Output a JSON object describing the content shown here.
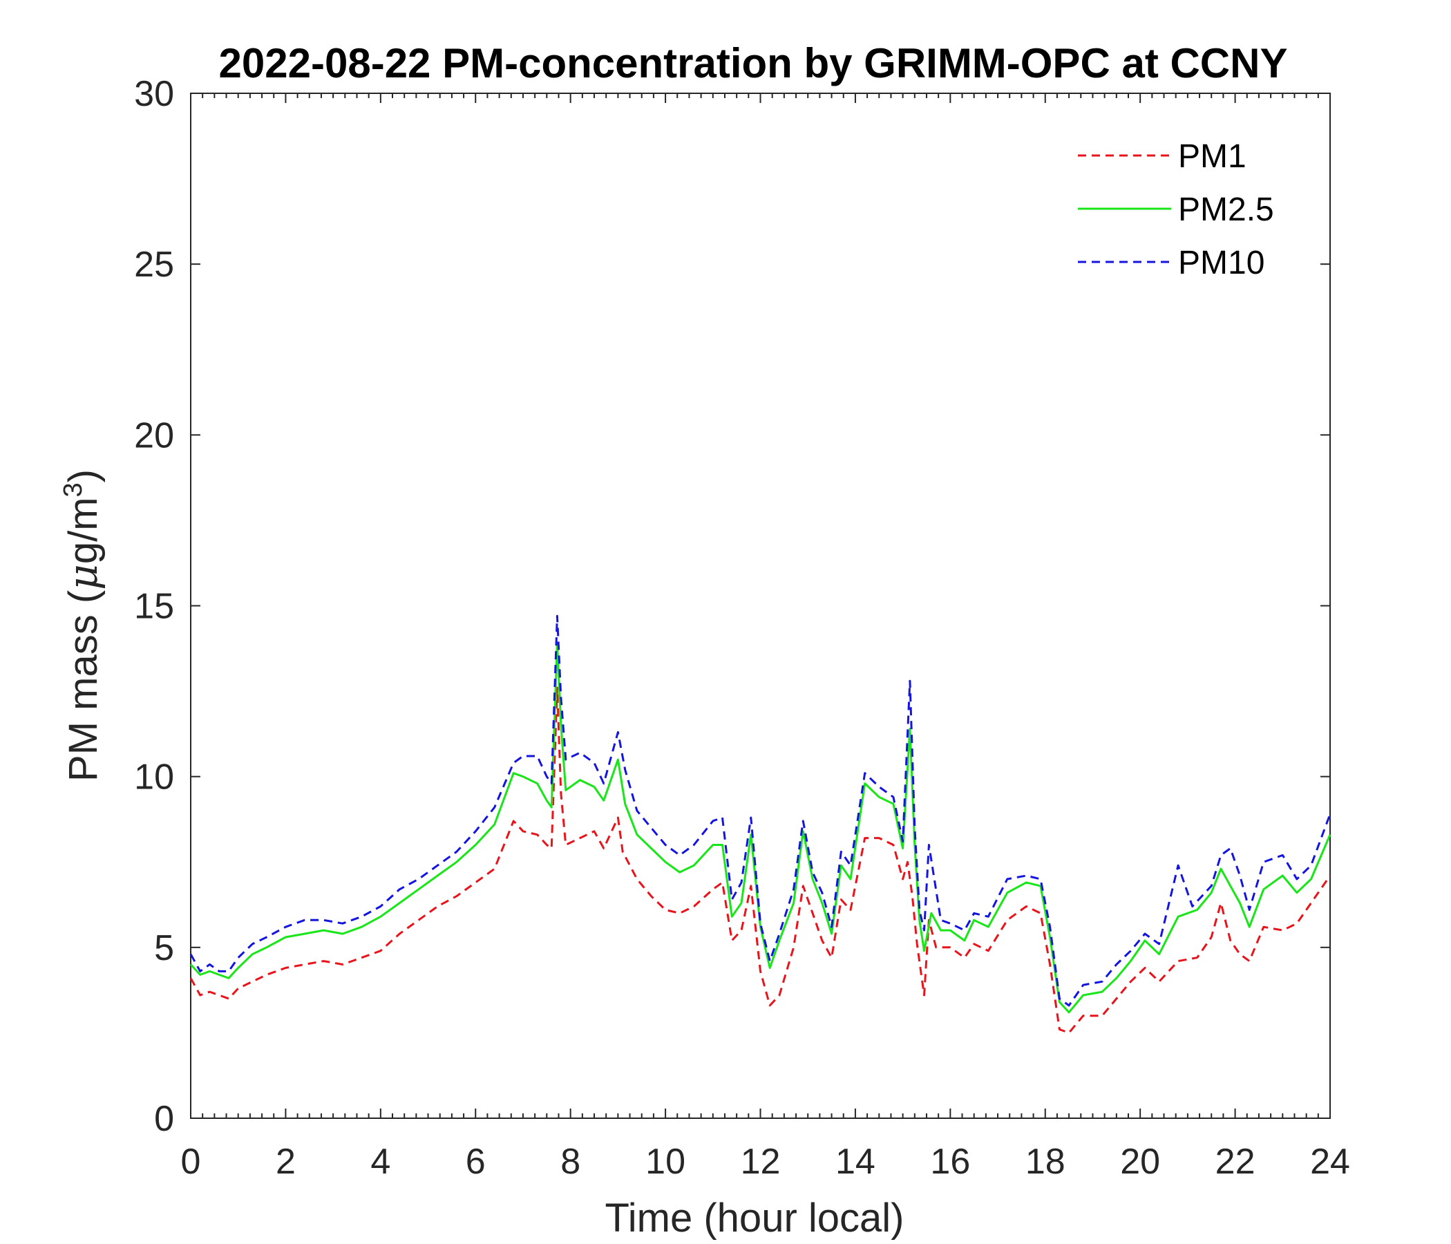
{
  "chart_data": {
    "type": "line",
    "title": "2022-08-22 PM-concentration by GRIMM-OPC at CCNY",
    "xlabel": "Time (hour local)",
    "ylabel_main": "PM mass (",
    "ylabel_mu": "μ",
    "ylabel_unit": "g/m",
    "ylabel_sup": "3",
    "ylabel_close": ")",
    "xlim": [
      0,
      24
    ],
    "ylim": [
      0,
      30
    ],
    "xticks": [
      "0",
      "2",
      "4",
      "6",
      "8",
      "10",
      "12",
      "14",
      "16",
      "18",
      "20",
      "22",
      "24"
    ],
    "yticks": [
      "0",
      "5",
      "10",
      "15",
      "20",
      "25",
      "30"
    ],
    "grid": false,
    "legend_position": "top-right",
    "series": [
      {
        "name": "PM1",
        "color": "#e8141b",
        "style": "dashed",
        "points": [
          [
            0,
            4.1
          ],
          [
            0.2,
            3.6
          ],
          [
            0.4,
            3.7
          ],
          [
            0.6,
            3.6
          ],
          [
            0.8,
            3.5
          ],
          [
            1.0,
            3.8
          ],
          [
            1.3,
            4.0
          ],
          [
            1.6,
            4.2
          ],
          [
            2.0,
            4.4
          ],
          [
            2.4,
            4.5
          ],
          [
            2.8,
            4.6
          ],
          [
            3.2,
            4.5
          ],
          [
            3.6,
            4.7
          ],
          [
            4.0,
            4.9
          ],
          [
            4.4,
            5.4
          ],
          [
            4.8,
            5.8
          ],
          [
            5.2,
            6.2
          ],
          [
            5.6,
            6.5
          ],
          [
            6.0,
            6.9
          ],
          [
            6.4,
            7.3
          ],
          [
            6.8,
            8.7
          ],
          [
            7.0,
            8.4
          ],
          [
            7.3,
            8.3
          ],
          [
            7.5,
            8.0
          ],
          [
            7.6,
            7.9
          ],
          [
            7.72,
            12.6
          ],
          [
            7.8,
            9.5
          ],
          [
            7.9,
            8.0
          ],
          [
            8.2,
            8.2
          ],
          [
            8.5,
            8.4
          ],
          [
            8.7,
            7.9
          ],
          [
            9.0,
            8.8
          ],
          [
            9.1,
            7.8
          ],
          [
            9.4,
            7.0
          ],
          [
            9.7,
            6.5
          ],
          [
            10.0,
            6.1
          ],
          [
            10.3,
            6.0
          ],
          [
            10.6,
            6.2
          ],
          [
            11.0,
            6.7
          ],
          [
            11.2,
            6.9
          ],
          [
            11.4,
            5.2
          ],
          [
            11.6,
            5.5
          ],
          [
            11.8,
            6.8
          ],
          [
            12.0,
            4.3
          ],
          [
            12.2,
            3.3
          ],
          [
            12.4,
            3.6
          ],
          [
            12.7,
            5.0
          ],
          [
            12.9,
            6.8
          ],
          [
            13.1,
            6.0
          ],
          [
            13.3,
            5.2
          ],
          [
            13.5,
            4.7
          ],
          [
            13.7,
            6.4
          ],
          [
            13.9,
            6.1
          ],
          [
            14.2,
            8.2
          ],
          [
            14.5,
            8.2
          ],
          [
            14.8,
            8.0
          ],
          [
            15.0,
            7.0
          ],
          [
            15.1,
            7.5
          ],
          [
            15.2,
            6.5
          ],
          [
            15.3,
            5.1
          ],
          [
            15.45,
            3.6
          ],
          [
            15.55,
            5.8
          ],
          [
            15.7,
            5.0
          ],
          [
            16.0,
            5.0
          ],
          [
            16.3,
            4.7
          ],
          [
            16.5,
            5.1
          ],
          [
            16.8,
            4.9
          ],
          [
            17.2,
            5.8
          ],
          [
            17.6,
            6.2
          ],
          [
            17.9,
            6.0
          ],
          [
            18.1,
            4.5
          ],
          [
            18.3,
            2.6
          ],
          [
            18.5,
            2.5
          ],
          [
            18.8,
            3.0
          ],
          [
            19.2,
            3.0
          ],
          [
            19.5,
            3.5
          ],
          [
            19.8,
            4.0
          ],
          [
            20.1,
            4.4
          ],
          [
            20.4,
            4.0
          ],
          [
            20.8,
            4.6
          ],
          [
            21.2,
            4.7
          ],
          [
            21.5,
            5.3
          ],
          [
            21.7,
            6.3
          ],
          [
            21.9,
            5.2
          ],
          [
            22.1,
            4.8
          ],
          [
            22.3,
            4.6
          ],
          [
            22.6,
            5.6
          ],
          [
            23.0,
            5.5
          ],
          [
            23.3,
            5.7
          ],
          [
            23.6,
            6.3
          ],
          [
            24.0,
            7.1
          ]
        ]
      },
      {
        "name": "PM2.5",
        "color": "#19e619",
        "style": "solid",
        "points": [
          [
            0,
            4.5
          ],
          [
            0.2,
            4.2
          ],
          [
            0.4,
            4.3
          ],
          [
            0.6,
            4.2
          ],
          [
            0.8,
            4.1
          ],
          [
            1.0,
            4.4
          ],
          [
            1.3,
            4.8
          ],
          [
            1.6,
            5.0
          ],
          [
            2.0,
            5.3
          ],
          [
            2.4,
            5.4
          ],
          [
            2.8,
            5.5
          ],
          [
            3.2,
            5.4
          ],
          [
            3.6,
            5.6
          ],
          [
            4.0,
            5.9
          ],
          [
            4.4,
            6.3
          ],
          [
            4.8,
            6.7
          ],
          [
            5.2,
            7.1
          ],
          [
            5.6,
            7.5
          ],
          [
            6.0,
            8.0
          ],
          [
            6.4,
            8.6
          ],
          [
            6.8,
            10.1
          ],
          [
            7.0,
            10.0
          ],
          [
            7.3,
            9.8
          ],
          [
            7.5,
            9.3
          ],
          [
            7.6,
            9.1
          ],
          [
            7.72,
            13.9
          ],
          [
            7.8,
            11.5
          ],
          [
            7.9,
            9.6
          ],
          [
            8.2,
            9.9
          ],
          [
            8.5,
            9.7
          ],
          [
            8.7,
            9.3
          ],
          [
            9.0,
            10.5
          ],
          [
            9.15,
            9.2
          ],
          [
            9.4,
            8.3
          ],
          [
            9.7,
            7.9
          ],
          [
            10.0,
            7.5
          ],
          [
            10.3,
            7.2
          ],
          [
            10.6,
            7.4
          ],
          [
            11.0,
            8.0
          ],
          [
            11.2,
            8.0
          ],
          [
            11.4,
            5.9
          ],
          [
            11.6,
            6.3
          ],
          [
            11.8,
            8.3
          ],
          [
            12.0,
            5.6
          ],
          [
            12.2,
            4.4
          ],
          [
            12.4,
            5.2
          ],
          [
            12.7,
            6.3
          ],
          [
            12.9,
            8.4
          ],
          [
            13.1,
            7.0
          ],
          [
            13.3,
            6.3
          ],
          [
            13.5,
            5.4
          ],
          [
            13.7,
            7.4
          ],
          [
            13.9,
            7.0
          ],
          [
            14.2,
            9.8
          ],
          [
            14.5,
            9.4
          ],
          [
            14.8,
            9.2
          ],
          [
            15.0,
            7.9
          ],
          [
            15.15,
            11.4
          ],
          [
            15.25,
            8.0
          ],
          [
            15.35,
            5.8
          ],
          [
            15.45,
            4.9
          ],
          [
            15.6,
            6.0
          ],
          [
            15.8,
            5.5
          ],
          [
            16.0,
            5.5
          ],
          [
            16.3,
            5.2
          ],
          [
            16.5,
            5.8
          ],
          [
            16.8,
            5.6
          ],
          [
            17.2,
            6.6
          ],
          [
            17.6,
            6.9
          ],
          [
            17.9,
            6.8
          ],
          [
            18.1,
            5.3
          ],
          [
            18.3,
            3.4
          ],
          [
            18.5,
            3.1
          ],
          [
            18.8,
            3.6
          ],
          [
            19.2,
            3.7
          ],
          [
            19.5,
            4.1
          ],
          [
            19.8,
            4.6
          ],
          [
            20.1,
            5.2
          ],
          [
            20.4,
            4.8
          ],
          [
            20.8,
            5.9
          ],
          [
            21.2,
            6.1
          ],
          [
            21.5,
            6.6
          ],
          [
            21.7,
            7.3
          ],
          [
            21.9,
            6.8
          ],
          [
            22.1,
            6.3
          ],
          [
            22.3,
            5.6
          ],
          [
            22.6,
            6.7
          ],
          [
            23.0,
            7.1
          ],
          [
            23.3,
            6.6
          ],
          [
            23.6,
            7.0
          ],
          [
            24.0,
            8.3
          ]
        ]
      },
      {
        "name": "PM10",
        "color": "#1414e0",
        "style": "dashed",
        "points": [
          [
            0,
            4.8
          ],
          [
            0.2,
            4.3
          ],
          [
            0.4,
            4.5
          ],
          [
            0.6,
            4.3
          ],
          [
            0.8,
            4.3
          ],
          [
            1.0,
            4.7
          ],
          [
            1.3,
            5.1
          ],
          [
            1.6,
            5.3
          ],
          [
            2.0,
            5.6
          ],
          [
            2.4,
            5.8
          ],
          [
            2.8,
            5.8
          ],
          [
            3.2,
            5.7
          ],
          [
            3.6,
            5.9
          ],
          [
            4.0,
            6.2
          ],
          [
            4.4,
            6.7
          ],
          [
            4.8,
            7.0
          ],
          [
            5.2,
            7.4
          ],
          [
            5.6,
            7.8
          ],
          [
            6.0,
            8.4
          ],
          [
            6.4,
            9.1
          ],
          [
            6.8,
            10.4
          ],
          [
            7.0,
            10.6
          ],
          [
            7.3,
            10.6
          ],
          [
            7.5,
            10.0
          ],
          [
            7.6,
            9.8
          ],
          [
            7.72,
            14.7
          ],
          [
            7.8,
            12.3
          ],
          [
            7.9,
            10.5
          ],
          [
            8.2,
            10.7
          ],
          [
            8.5,
            10.4
          ],
          [
            8.7,
            9.8
          ],
          [
            9.0,
            11.3
          ],
          [
            9.15,
            10.2
          ],
          [
            9.4,
            9.0
          ],
          [
            9.7,
            8.5
          ],
          [
            10.0,
            8.0
          ],
          [
            10.3,
            7.7
          ],
          [
            10.6,
            8.0
          ],
          [
            11.0,
            8.7
          ],
          [
            11.2,
            8.8
          ],
          [
            11.4,
            6.4
          ],
          [
            11.6,
            6.9
          ],
          [
            11.8,
            8.8
          ],
          [
            12.0,
            5.7
          ],
          [
            12.2,
            4.6
          ],
          [
            12.4,
            5.4
          ],
          [
            12.7,
            6.7
          ],
          [
            12.9,
            8.7
          ],
          [
            13.1,
            7.2
          ],
          [
            13.3,
            6.6
          ],
          [
            13.5,
            5.6
          ],
          [
            13.7,
            7.8
          ],
          [
            13.9,
            7.4
          ],
          [
            14.2,
            10.1
          ],
          [
            14.5,
            9.7
          ],
          [
            14.8,
            9.4
          ],
          [
            15.0,
            8.1
          ],
          [
            15.15,
            12.8
          ],
          [
            15.25,
            8.5
          ],
          [
            15.35,
            6.1
          ],
          [
            15.45,
            5.5
          ],
          [
            15.55,
            8.0
          ],
          [
            15.8,
            5.8
          ],
          [
            16.0,
            5.7
          ],
          [
            16.3,
            5.5
          ],
          [
            16.5,
            6.0
          ],
          [
            16.8,
            5.9
          ],
          [
            17.2,
            7.0
          ],
          [
            17.6,
            7.1
          ],
          [
            17.9,
            7.0
          ],
          [
            18.1,
            5.6
          ],
          [
            18.3,
            3.5
          ],
          [
            18.5,
            3.3
          ],
          [
            18.8,
            3.9
          ],
          [
            19.2,
            4.0
          ],
          [
            19.5,
            4.5
          ],
          [
            19.8,
            4.9
          ],
          [
            20.1,
            5.4
          ],
          [
            20.4,
            5.1
          ],
          [
            20.8,
            7.4
          ],
          [
            21.1,
            6.2
          ],
          [
            21.5,
            6.8
          ],
          [
            21.7,
            7.7
          ],
          [
            21.9,
            7.9
          ],
          [
            22.1,
            7.1
          ],
          [
            22.3,
            6.1
          ],
          [
            22.6,
            7.5
          ],
          [
            23.0,
            7.7
          ],
          [
            23.3,
            7.0
          ],
          [
            23.6,
            7.4
          ],
          [
            24.0,
            8.9
          ]
        ]
      }
    ]
  }
}
